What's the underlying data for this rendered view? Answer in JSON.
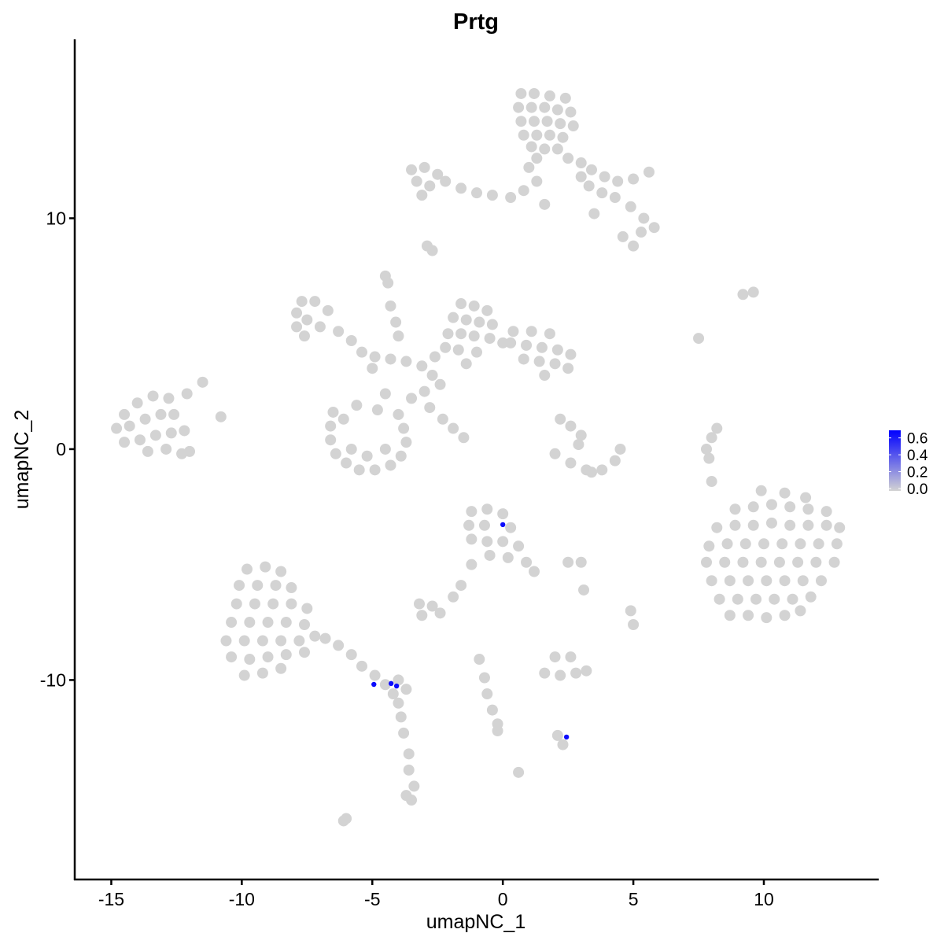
{
  "chart_data": {
    "type": "scatter",
    "title": "Prtg",
    "xlabel": "umapNC_1",
    "ylabel": "umapNC_2",
    "xlim": [
      -16.4,
      14.37
    ],
    "ylim": [
      -18.64,
      17.75
    ],
    "xticks": [
      -15,
      -10,
      -5,
      0,
      5,
      10
    ],
    "yticks": [
      -10,
      0,
      10
    ],
    "xtick_labels": [
      "-15",
      "-10",
      "-5",
      "0",
      "5",
      "10"
    ],
    "ytick_labels": [
      "-10",
      "0",
      "10"
    ],
    "grid": false,
    "colors": {
      "low": "#d3d3d3",
      "high": "#0000ff"
    },
    "legend": {
      "placement": "right",
      "range": [
        0,
        0.69
      ],
      "ticks": [
        0.0,
        0.2,
        0.4,
        0.6
      ],
      "tick_labels": [
        "0.0",
        "0.2",
        "0.4",
        "0.6"
      ]
    },
    "unexpressed_points": [
      [
        0.7,
        15.4
      ],
      [
        1.2,
        15.4
      ],
      [
        1.8,
        15.3
      ],
      [
        2.4,
        15.2
      ],
      [
        0.6,
        14.8
      ],
      [
        1.1,
        14.8
      ],
      [
        1.6,
        14.8
      ],
      [
        2.1,
        14.7
      ],
      [
        2.6,
        14.6
      ],
      [
        0.7,
        14.2
      ],
      [
        1.2,
        14.2
      ],
      [
        1.7,
        14.2
      ],
      [
        2.2,
        14.1
      ],
      [
        2.7,
        14.0
      ],
      [
        0.8,
        13.6
      ],
      [
        1.3,
        13.6
      ],
      [
        1.8,
        13.6
      ],
      [
        2.3,
        13.5
      ],
      [
        1.1,
        13.1
      ],
      [
        1.6,
        13.0
      ],
      [
        2.1,
        13.0
      ],
      [
        1.3,
        12.6
      ],
      [
        2.5,
        12.6
      ],
      [
        3.0,
        12.4
      ],
      [
        3.4,
        12.1
      ],
      [
        3.9,
        11.8
      ],
      [
        4.4,
        11.6
      ],
      [
        5.0,
        11.7
      ],
      [
        5.6,
        12.0
      ],
      [
        3.3,
        11.4
      ],
      [
        3.8,
        11.1
      ],
      [
        4.3,
        10.9
      ],
      [
        4.9,
        10.5
      ],
      [
        5.4,
        10.0
      ],
      [
        5.8,
        9.6
      ],
      [
        5.3,
        9.4
      ],
      [
        4.6,
        9.2
      ],
      [
        5.0,
        8.8
      ],
      [
        3.5,
        10.2
      ],
      [
        3.0,
        11.8
      ],
      [
        -3.5,
        12.1
      ],
      [
        -3.0,
        12.2
      ],
      [
        -2.5,
        11.9
      ],
      [
        -3.3,
        11.6
      ],
      [
        -2.8,
        11.4
      ],
      [
        -3.1,
        11.0
      ],
      [
        -2.2,
        11.6
      ],
      [
        -1.6,
        11.3
      ],
      [
        -1.0,
        11.1
      ],
      [
        -0.4,
        11.0
      ],
      [
        0.3,
        10.9
      ],
      [
        0.8,
        11.2
      ],
      [
        1.3,
        11.6
      ],
      [
        1.6,
        10.6
      ],
      [
        1.0,
        12.2
      ],
      [
        -2.9,
        8.8
      ],
      [
        -2.7,
        8.6
      ],
      [
        -4.5,
        7.5
      ],
      [
        -4.4,
        7.2
      ],
      [
        -4.3,
        6.2
      ],
      [
        -4.1,
        5.5
      ],
      [
        -4.0,
        4.9
      ],
      [
        -7.7,
        6.4
      ],
      [
        -7.2,
        6.4
      ],
      [
        -7.9,
        5.9
      ],
      [
        -7.5,
        5.6
      ],
      [
        -6.7,
        6.0
      ],
      [
        -7.0,
        5.3
      ],
      [
        -6.3,
        5.1
      ],
      [
        -5.8,
        4.7
      ],
      [
        -7.9,
        5.3
      ],
      [
        -7.6,
        4.9
      ],
      [
        -5.4,
        4.2
      ],
      [
        -4.9,
        4.0
      ],
      [
        -4.3,
        3.9
      ],
      [
        -3.7,
        3.8
      ],
      [
        -3.1,
        3.6
      ],
      [
        -2.7,
        3.2
      ],
      [
        -2.4,
        2.8
      ],
      [
        -3.0,
        2.5
      ],
      [
        -3.5,
        2.2
      ],
      [
        -2.8,
        1.8
      ],
      [
        -2.3,
        1.3
      ],
      [
        -1.9,
        0.9
      ],
      [
        -1.5,
        0.5
      ],
      [
        -5.0,
        3.5
      ],
      [
        -4.5,
        2.4
      ],
      [
        -1.6,
        6.3
      ],
      [
        -1.1,
        6.2
      ],
      [
        -0.6,
        6.0
      ],
      [
        -1.9,
        5.7
      ],
      [
        -1.4,
        5.6
      ],
      [
        -0.9,
        5.5
      ],
      [
        -0.4,
        5.4
      ],
      [
        -2.1,
        5.0
      ],
      [
        -1.6,
        5.0
      ],
      [
        -1.1,
        4.9
      ],
      [
        -0.5,
        4.8
      ],
      [
        -2.2,
        4.4
      ],
      [
        -1.7,
        4.3
      ],
      [
        -1.0,
        4.2
      ],
      [
        -2.6,
        4.0
      ],
      [
        -1.4,
        3.7
      ],
      [
        0.0,
        4.6
      ],
      [
        0.4,
        5.1
      ],
      [
        1.1,
        5.1
      ],
      [
        1.8,
        5.0
      ],
      [
        0.3,
        4.6
      ],
      [
        0.9,
        4.5
      ],
      [
        1.5,
        4.4
      ],
      [
        2.1,
        4.3
      ],
      [
        2.6,
        4.1
      ],
      [
        0.8,
        3.9
      ],
      [
        1.4,
        3.8
      ],
      [
        2.0,
        3.7
      ],
      [
        2.5,
        3.5
      ],
      [
        1.6,
        3.2
      ],
      [
        -6.5,
        1.6
      ],
      [
        -6.6,
        1.0
      ],
      [
        -6.6,
        0.4
      ],
      [
        -6.4,
        -0.2
      ],
      [
        -6.0,
        -0.6
      ],
      [
        -5.5,
        -0.9
      ],
      [
        -4.9,
        -0.9
      ],
      [
        -4.3,
        -0.7
      ],
      [
        -3.9,
        -0.3
      ],
      [
        -3.7,
        0.3
      ],
      [
        -3.8,
        0.9
      ],
      [
        -4.0,
        1.5
      ],
      [
        -5.8,
        0.0
      ],
      [
        -5.2,
        -0.3
      ],
      [
        -4.5,
        0.0
      ],
      [
        -6.1,
        1.3
      ],
      [
        -5.6,
        1.9
      ],
      [
        -4.8,
        1.7
      ],
      [
        -14.5,
        1.5
      ],
      [
        -14.0,
        2.0
      ],
      [
        -13.4,
        2.3
      ],
      [
        -12.8,
        2.2
      ],
      [
        -14.8,
        0.9
      ],
      [
        -14.3,
        1.0
      ],
      [
        -13.7,
        1.3
      ],
      [
        -13.1,
        1.5
      ],
      [
        -12.6,
        1.5
      ],
      [
        -14.5,
        0.3
      ],
      [
        -13.9,
        0.4
      ],
      [
        -13.3,
        0.6
      ],
      [
        -12.7,
        0.7
      ],
      [
        -12.2,
        0.8
      ],
      [
        -13.6,
        -0.1
      ],
      [
        -12.9,
        0.0
      ],
      [
        -12.3,
        -0.2
      ],
      [
        -12.0,
        -0.1
      ],
      [
        -12.1,
        2.4
      ],
      [
        -11.5,
        2.9
      ],
      [
        -10.8,
        1.4
      ],
      [
        2.2,
        1.3
      ],
      [
        2.6,
        1.0
      ],
      [
        3.0,
        0.6
      ],
      [
        2.0,
        -0.2
      ],
      [
        2.6,
        -0.6
      ],
      [
        3.2,
        -0.9
      ],
      [
        3.8,
        -0.9
      ],
      [
        4.3,
        -0.5
      ],
      [
        4.5,
        0.0
      ],
      [
        3.4,
        -1.0
      ],
      [
        2.9,
        0.2
      ],
      [
        8.0,
        -1.4
      ],
      [
        7.9,
        -0.4
      ],
      [
        7.8,
        0.0
      ],
      [
        8.0,
        0.5
      ],
      [
        8.2,
        0.9
      ],
      [
        7.5,
        4.8
      ],
      [
        9.2,
        6.7
      ],
      [
        9.6,
        6.8
      ],
      [
        9.9,
        -1.8
      ],
      [
        10.8,
        -1.9
      ],
      [
        11.6,
        -2.1
      ],
      [
        8.9,
        -2.6
      ],
      [
        9.6,
        -2.5
      ],
      [
        10.3,
        -2.4
      ],
      [
        11.0,
        -2.5
      ],
      [
        11.7,
        -2.6
      ],
      [
        12.4,
        -2.7
      ],
      [
        8.2,
        -3.4
      ],
      [
        8.9,
        -3.3
      ],
      [
        9.6,
        -3.3
      ],
      [
        10.3,
        -3.2
      ],
      [
        11.0,
        -3.3
      ],
      [
        11.7,
        -3.3
      ],
      [
        12.4,
        -3.3
      ],
      [
        12.9,
        -3.4
      ],
      [
        7.9,
        -4.2
      ],
      [
        8.6,
        -4.1
      ],
      [
        9.3,
        -4.1
      ],
      [
        10.0,
        -4.1
      ],
      [
        10.7,
        -4.1
      ],
      [
        11.4,
        -4.1
      ],
      [
        12.1,
        -4.1
      ],
      [
        12.8,
        -4.1
      ],
      [
        7.8,
        -4.9
      ],
      [
        8.5,
        -4.9
      ],
      [
        9.2,
        -4.9
      ],
      [
        9.9,
        -4.9
      ],
      [
        10.6,
        -4.9
      ],
      [
        11.3,
        -4.9
      ],
      [
        12.0,
        -4.9
      ],
      [
        12.7,
        -4.9
      ],
      [
        8.0,
        -5.7
      ],
      [
        8.7,
        -5.7
      ],
      [
        9.4,
        -5.7
      ],
      [
        10.1,
        -5.7
      ],
      [
        10.8,
        -5.7
      ],
      [
        11.5,
        -5.7
      ],
      [
        12.2,
        -5.7
      ],
      [
        8.3,
        -6.5
      ],
      [
        9.0,
        -6.5
      ],
      [
        9.7,
        -6.5
      ],
      [
        10.4,
        -6.5
      ],
      [
        11.1,
        -6.5
      ],
      [
        11.8,
        -6.4
      ],
      [
        8.7,
        -7.2
      ],
      [
        9.4,
        -7.2
      ],
      [
        10.1,
        -7.3
      ],
      [
        10.8,
        -7.2
      ],
      [
        11.4,
        -7.0
      ],
      [
        -1.2,
        -2.7
      ],
      [
        -0.6,
        -2.6
      ],
      [
        0.0,
        -2.8
      ],
      [
        -1.3,
        -3.3
      ],
      [
        -0.7,
        -3.3
      ],
      [
        0.3,
        -3.4
      ],
      [
        -1.2,
        -3.9
      ],
      [
        -0.6,
        -4.0
      ],
      [
        0.0,
        -4.0
      ],
      [
        0.6,
        -4.2
      ],
      [
        -0.5,
        -4.6
      ],
      [
        0.2,
        -4.7
      ],
      [
        0.9,
        -4.9
      ],
      [
        1.2,
        -5.3
      ],
      [
        -1.2,
        -5.0
      ],
      [
        -1.6,
        -5.9
      ],
      [
        -1.9,
        -6.4
      ],
      [
        2.5,
        -4.9
      ],
      [
        3.0,
        -4.9
      ],
      [
        -3.2,
        -6.7
      ],
      [
        -2.7,
        -6.8
      ],
      [
        -3.1,
        -7.2
      ],
      [
        -2.4,
        -7.1
      ],
      [
        3.1,
        -6.1
      ],
      [
        4.9,
        -7.0
      ],
      [
        5.0,
        -7.6
      ],
      [
        -9.8,
        -5.2
      ],
      [
        -9.1,
        -5.1
      ],
      [
        -8.5,
        -5.3
      ],
      [
        -10.1,
        -5.9
      ],
      [
        -9.4,
        -5.9
      ],
      [
        -8.7,
        -5.9
      ],
      [
        -8.1,
        -6.0
      ],
      [
        -10.2,
        -6.7
      ],
      [
        -9.5,
        -6.7
      ],
      [
        -8.8,
        -6.7
      ],
      [
        -8.1,
        -6.7
      ],
      [
        -7.5,
        -6.9
      ],
      [
        -10.4,
        -7.5
      ],
      [
        -9.7,
        -7.5
      ],
      [
        -9.0,
        -7.5
      ],
      [
        -8.3,
        -7.5
      ],
      [
        -7.6,
        -7.6
      ],
      [
        -10.6,
        -8.3
      ],
      [
        -9.9,
        -8.3
      ],
      [
        -9.2,
        -8.3
      ],
      [
        -8.5,
        -8.3
      ],
      [
        -7.8,
        -8.3
      ],
      [
        -7.2,
        -8.1
      ],
      [
        -10.4,
        -9.0
      ],
      [
        -9.7,
        -9.1
      ],
      [
        -9.0,
        -9.0
      ],
      [
        -8.3,
        -8.9
      ],
      [
        -7.6,
        -8.8
      ],
      [
        -9.9,
        -9.8
      ],
      [
        -9.2,
        -9.7
      ],
      [
        -8.5,
        -9.5
      ],
      [
        -6.8,
        -8.2
      ],
      [
        -6.3,
        -8.5
      ],
      [
        -5.8,
        -8.9
      ],
      [
        -5.4,
        -9.4
      ],
      [
        -4.9,
        -9.8
      ],
      [
        -4.5,
        -10.2
      ],
      [
        -4.0,
        -10.0
      ],
      [
        -3.7,
        -10.4
      ],
      [
        -4.2,
        -10.6
      ],
      [
        -4.0,
        -11.0
      ],
      [
        -3.9,
        -11.6
      ],
      [
        -3.8,
        -12.3
      ],
      [
        -3.6,
        -13.2
      ],
      [
        -3.6,
        -13.9
      ],
      [
        -3.4,
        -14.6
      ],
      [
        -3.5,
        -15.2
      ],
      [
        -3.7,
        -15.0
      ],
      [
        1.6,
        -9.7
      ],
      [
        2.2,
        -9.8
      ],
      [
        2.8,
        -9.7
      ],
      [
        3.2,
        -9.6
      ],
      [
        2.0,
        -9.0
      ],
      [
        2.6,
        -9.0
      ],
      [
        -0.9,
        -9.1
      ],
      [
        -0.7,
        -9.9
      ],
      [
        -0.6,
        -10.6
      ],
      [
        -0.4,
        -11.3
      ],
      [
        -0.2,
        -11.9
      ],
      [
        -0.2,
        -12.2
      ],
      [
        2.1,
        -12.4
      ],
      [
        2.3,
        -12.8
      ],
      [
        0.6,
        -14.0
      ],
      [
        -6.1,
        -16.1
      ],
      [
        -6.0,
        -16.0
      ]
    ],
    "expressed_points": [
      {
        "x": 0.0,
        "y": -3.27,
        "value": 0.65
      },
      {
        "x": -4.94,
        "y": -10.19,
        "value": 0.65
      },
      {
        "x": -4.28,
        "y": -10.15,
        "value": 0.65
      },
      {
        "x": -4.07,
        "y": -10.26,
        "value": 0.65
      },
      {
        "x": 2.44,
        "y": -12.47,
        "value": 0.65
      }
    ]
  }
}
